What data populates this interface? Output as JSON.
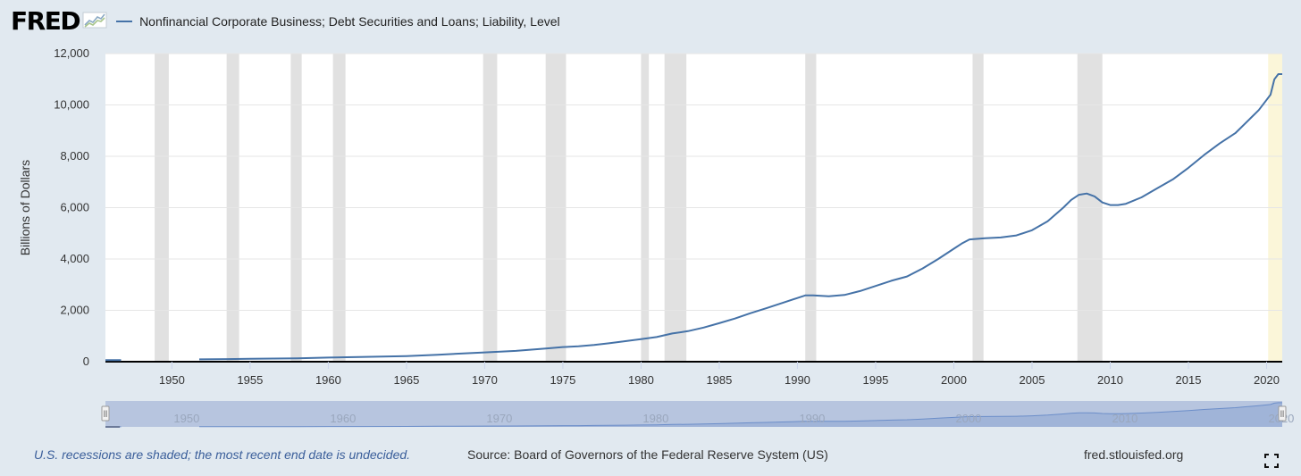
{
  "header": {
    "logo_text": "FRED",
    "logo_icon": "fred-graph-icon",
    "series_title": "Nonfinancial Corporate Business; Debt Securities and Loans; Liability, Level"
  },
  "footer": {
    "note": "U.S. recessions are shaded; the most recent end date is undecided.",
    "source": "Source: Board of Governors of the Federal Reserve System (US)",
    "site": "fred.stlouisfed.org",
    "fullscreen_icon": "fullscreen-icon"
  },
  "colors": {
    "background": "#e1e9f0",
    "plot_bg": "#ffffff",
    "series": "#4572a7",
    "recession": "#e1e1e1",
    "undecided_recession": "#fbf6d9",
    "navigator_fill": "#b7c5df",
    "navigator_line": "#6c8ec9"
  },
  "chart_data": {
    "type": "line",
    "title": "Nonfinancial Corporate Business; Debt Securities and Loans; Liability, Level",
    "ylabel": "Billions of Dollars",
    "xlabel": "",
    "xlim": [
      1945.75,
      2021.0
    ],
    "ylim": [
      0,
      12000
    ],
    "y_ticks": [
      0,
      2000,
      4000,
      6000,
      8000,
      10000,
      12000
    ],
    "y_tick_labels": [
      "0",
      "2,000",
      "4,000",
      "6,000",
      "8,000",
      "10,000",
      "12,000"
    ],
    "x_ticks": [
      1950,
      1955,
      1960,
      1965,
      1970,
      1975,
      1980,
      1985,
      1990,
      1995,
      2000,
      2005,
      2010,
      2015,
      2020
    ],
    "x_tick_labels": [
      "1950",
      "1955",
      "1960",
      "1965",
      "1970",
      "1975",
      "1980",
      "1985",
      "1990",
      "1995",
      "2000",
      "2005",
      "2010",
      "2015",
      "2020"
    ],
    "grid": "horizontal",
    "recessions": [
      [
        1948.9,
        1949.8
      ],
      [
        1953.5,
        1954.3
      ],
      [
        1957.6,
        1958.3
      ],
      [
        1960.3,
        1961.1
      ],
      [
        1969.9,
        1970.8
      ],
      [
        1973.9,
        1975.2
      ],
      [
        1980.0,
        1980.5
      ],
      [
        1981.5,
        1982.9
      ],
      [
        1990.5,
        1991.2
      ],
      [
        2001.2,
        2001.9
      ],
      [
        2007.9,
        2009.5
      ],
      [
        2020.1,
        2021.0
      ]
    ],
    "undecided_recession_start": 2020.1,
    "series": [
      {
        "name": "Nonfinancial Corporate Business; Debt Securities and Loans; Liability, Level",
        "segments": [
          {
            "x": [
              1945.75,
              1946.75
            ],
            "y": [
              60,
              62
            ]
          },
          {
            "x": [
              1951.75,
              1955,
              1958,
              1960,
              1962,
              1965,
              1967,
              1970,
              1972,
              1974,
              1975,
              1976,
              1977,
              1978,
              1979,
              1980,
              1981,
              1982,
              1983,
              1984,
              1985,
              1986,
              1987,
              1988,
              1989,
              1990,
              1990.5,
              1991,
              1992,
              1993,
              1994,
              1995,
              1996,
              1997,
              1998,
              1999,
              2000,
              2000.5,
              2001,
              2002,
              2003,
              2004,
              2005,
              2006,
              2007,
              2007.5,
              2008,
              2008.5,
              2009,
              2009.5,
              2010,
              2010.5,
              2011,
              2012,
              2013,
              2014,
              2015,
              2016,
              2017,
              2018,
              2019,
              2019.5,
              2020,
              2020.25,
              2020.5,
              2020.75,
              2021.0
            ],
            "y": [
              90,
              110,
              130,
              160,
              180,
              220,
              270,
              360,
              420,
              520,
              570,
              600,
              650,
              720,
              800,
              880,
              960,
              1100,
              1190,
              1330,
              1500,
              1680,
              1890,
              2080,
              2280,
              2480,
              2580,
              2580,
              2550,
              2600,
              2750,
              2950,
              3150,
              3320,
              3630,
              4000,
              4400,
              4600,
              4760,
              4810,
              4840,
              4920,
              5120,
              5470,
              6000,
              6300,
              6500,
              6550,
              6440,
              6200,
              6100,
              6100,
              6150,
              6400,
              6750,
              7100,
              7550,
              8050,
              8500,
              8900,
              9500,
              9800,
              10200,
              10400,
              11000,
              11200,
              11200
            ]
          }
        ]
      }
    ],
    "navigator": {
      "tick_labels": [
        "1950",
        "1960",
        "1970",
        "1980",
        "1990",
        "2000",
        "2010",
        "2020"
      ],
      "handle_left_glyph": "ll",
      "handle_right_glyph": "ll"
    }
  }
}
